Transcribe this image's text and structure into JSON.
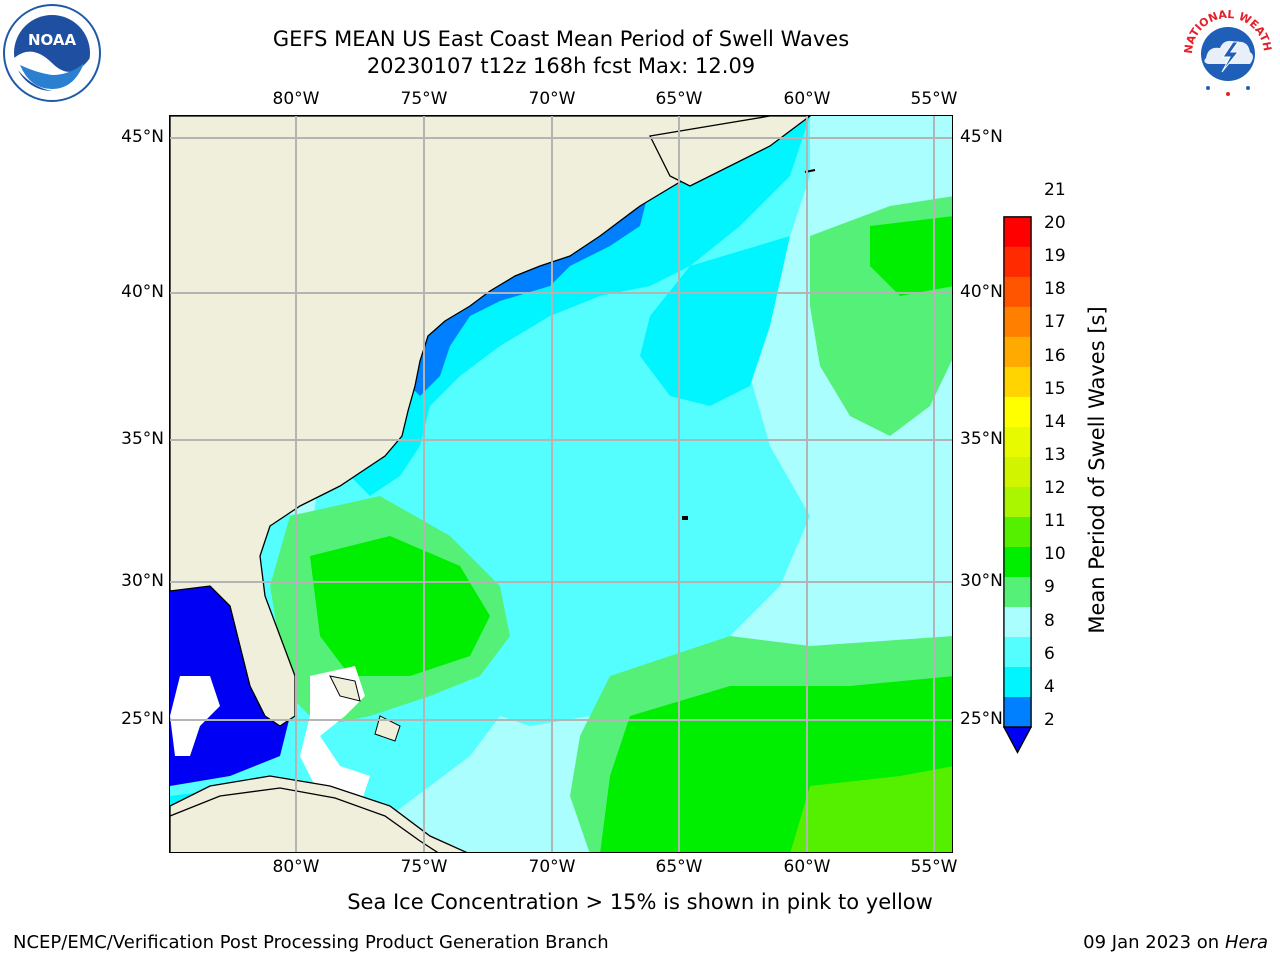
{
  "title_line1": "GEFS MEAN US East Coast Mean Period of Swell Waves",
  "title_line2": "20230107 t12z 168h fcst   Max: 12.09",
  "map": {
    "lon_labels": [
      "80°W",
      "75°W",
      "70°W",
      "65°W",
      "60°W",
      "55°W"
    ],
    "lat_labels": [
      "45°N",
      "40°N",
      "35°N",
      "30°N",
      "25°N"
    ],
    "land_color": "#efefdc",
    "grid_color": "#b4b4b4"
  },
  "chart_data": {
    "type": "heatmap",
    "title": "GEFS MEAN US East Coast Mean Period of Swell Waves",
    "subtitle": "20230107 t12z 168h fcst   Max: 12.09",
    "xlabel": "",
    "ylabel": "",
    "x_ticks": [
      "80°W",
      "75°W",
      "70°W",
      "65°W",
      "60°W",
      "55°W"
    ],
    "y_ticks": [
      "45°N",
      "40°N",
      "35°N",
      "30°N",
      "25°N"
    ],
    "max_value": 12.09,
    "colorbar": {
      "label": "Mean Period of Swell Waves [s]",
      "ticks": [
        "21",
        "20",
        "19",
        "18",
        "17",
        "16",
        "15",
        "14",
        "13",
        "12",
        "11",
        "10",
        "9",
        "8",
        "6",
        "4",
        "2"
      ],
      "colors": [
        "#ff0000",
        "#ff2a00",
        "#ff5500",
        "#ff8000",
        "#ffaa00",
        "#ffd400",
        "#ffff00",
        "#e8fa00",
        "#d1f500",
        "#aaf500",
        "#55f000",
        "#00ee00",
        "#55f078",
        "#aafefe",
        "#55fefe",
        "#00f5ff",
        "#0080ff"
      ],
      "under_color": "#0000f5"
    }
  },
  "footer": {
    "note": "Sea Ice Concentration > 15% is shown in pink to yellow",
    "credit_left": "NCEP/EMC/Verification Post Processing Product Generation Branch",
    "credit_date": "09 Jan 2023 on",
    "credit_host": "Hera"
  },
  "logos": {
    "noaa": "NOAA",
    "nws": "NATIONAL WEATHER SERVICE"
  }
}
